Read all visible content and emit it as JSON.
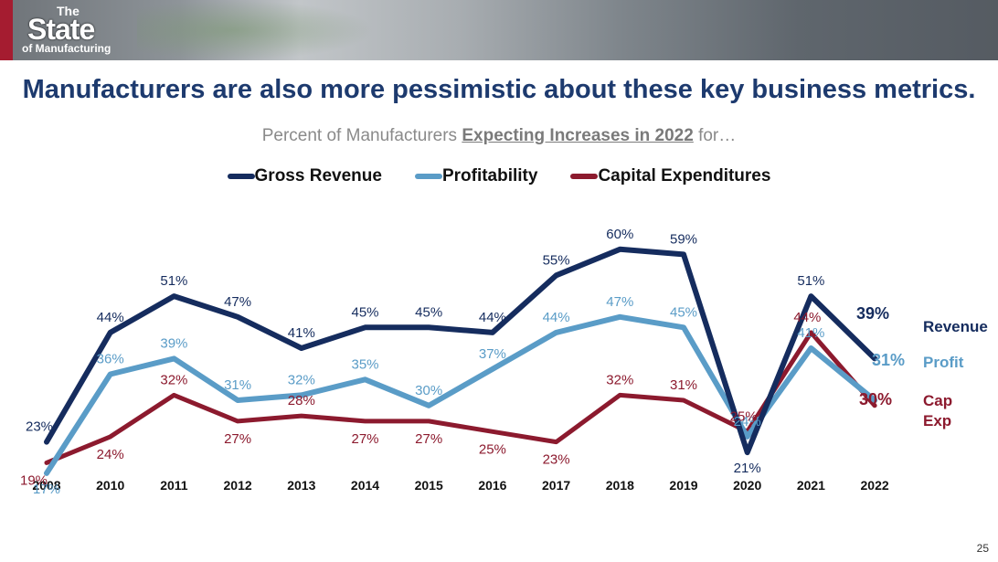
{
  "header": {
    "logo_the": "The",
    "logo_state": "State",
    "logo_mfg": "of Manufacturing"
  },
  "title": "Manufacturers are also more pessimistic about these key business metrics.",
  "subtitle": {
    "before": "Percent of Manufacturers ",
    "emphasis": "Expecting Increases in 2022",
    "after": " for…"
  },
  "page_number": "25",
  "colors": {
    "revenue": "#152c5e",
    "profit": "#5a9cc7",
    "capex": "#8c1a2e"
  },
  "chart_data": {
    "type": "line",
    "categories": [
      "2008",
      "2010",
      "2011",
      "2012",
      "2013",
      "2014",
      "2015",
      "2016",
      "2017",
      "2018",
      "2019",
      "2020",
      "2021",
      "2022"
    ],
    "series": [
      {
        "name": "Gross Revenue",
        "key": "revenue",
        "values": [
          23,
          44,
          51,
          47,
          41,
          45,
          45,
          44,
          55,
          60,
          59,
          21,
          51,
          39
        ]
      },
      {
        "name": "Profitability",
        "key": "profit",
        "values": [
          17,
          36,
          39,
          31,
          32,
          35,
          30,
          37,
          44,
          47,
          45,
          24,
          41,
          31
        ]
      },
      {
        "name": "Capital Expenditures",
        "key": "capex",
        "values": [
          19,
          24,
          32,
          27,
          28,
          27,
          27,
          25,
          23,
          32,
          31,
          25,
          44,
          30
        ]
      }
    ],
    "labels": {
      "revenue": [
        "23%",
        "44%",
        "51%",
        "47%",
        "41%",
        "45%",
        "45%",
        "44%",
        "55%",
        "60%",
        "59%",
        "21%",
        "51%",
        "39%"
      ],
      "profit": [
        "17%",
        "36%",
        "39%",
        "31%",
        "32%",
        "35%",
        "30%",
        "37%",
        "44%",
        "47%",
        "45%",
        "24%",
        "41%",
        "31%"
      ],
      "capex": [
        "19%",
        "24%",
        "32%",
        "27%",
        "28%",
        "27%",
        "27%",
        "25%",
        "23%",
        "32%",
        "31%",
        "25%",
        "44%",
        "30%"
      ]
    },
    "side_labels": {
      "revenue": "Revenue",
      "profit": "Profit",
      "capex_line1": "Cap",
      "capex_line2": "Exp"
    },
    "ylim": [
      0,
      70
    ],
    "grid": false,
    "legend_position": "top-center"
  }
}
